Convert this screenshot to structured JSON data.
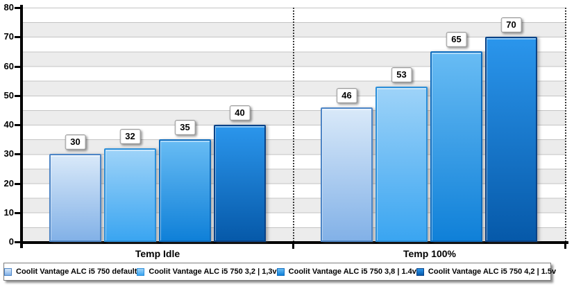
{
  "chart_data": {
    "type": "bar",
    "title": "",
    "categories": [
      "Temp Idle",
      "Temp 100%"
    ],
    "series": [
      {
        "name": "Coolit Vantage ALC i5 750 default",
        "values": [
          30,
          46
        ],
        "color_top": "#d9e9f9",
        "color_bottom": "#82b1e7",
        "border": "#4d85c6"
      },
      {
        "name": "Coolit Vantage ALC i5 750 3,2 | 1,3v",
        "values": [
          32,
          53
        ],
        "color_top": "#9ed3f8",
        "color_bottom": "#3aa5f1",
        "border": "#2a8ed9"
      },
      {
        "name": "Coolit Vantage ALC i5 750 3,8 | 1.4v",
        "values": [
          35,
          65
        ],
        "color_top": "#68bcf4",
        "color_bottom": "#0f80d8",
        "border": "#0d6bbd"
      },
      {
        "name": "Coolit Vantage ALC i5 750 4,2 | 1.5v",
        "values": [
          40,
          70
        ],
        "color_top": "#2b96ec",
        "color_bottom": "#0659a9",
        "border": "#0a4286"
      }
    ],
    "xlabel": "",
    "ylabel": "",
    "ylim": [
      0,
      80
    ],
    "ytick_step": 10,
    "yticks": [
      "0",
      "10",
      "20",
      "30",
      "40",
      "50",
      "60",
      "70",
      "80"
    ],
    "grid_band_step": 5,
    "grid": true,
    "legend_position": "bottom",
    "colors": {
      "grid_line": "#c3c3c3",
      "band_gray": "#ececec",
      "axis": "#000000"
    }
  }
}
